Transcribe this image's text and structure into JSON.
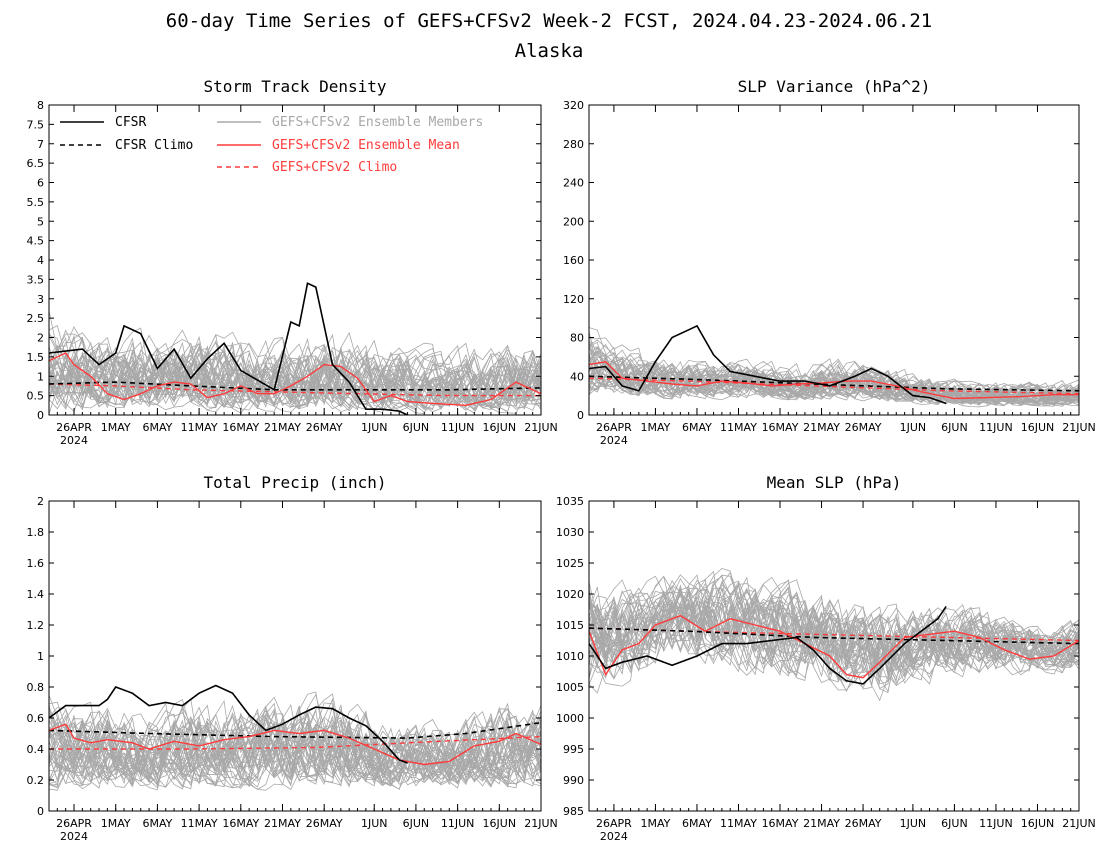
{
  "figure": {
    "title_line1": "60-day Time Series of GEFS+CFSv2 Week-2 FCST, 2024.04.23-2024.06.21",
    "title_line2": "Alaska"
  },
  "colors": {
    "cfsr": "#000000",
    "members": "#a8a8a8",
    "ensemble_mean": "#ff3b3b",
    "gefs_climo": "#ff3b3b"
  },
  "x_axis": {
    "start_date": "2024-04-23",
    "end_date": "2024-06-21",
    "tick_labels": [
      "26APR",
      "1MAY",
      "6MAY",
      "11MAY",
      "16MAY",
      "21MAY",
      "26MAY",
      "1JUN",
      "6JUN",
      "11JUN",
      "16JUN",
      "21JUN"
    ],
    "tick_dates": [
      "2024-04-26",
      "2024-05-01",
      "2024-05-06",
      "2024-05-11",
      "2024-05-16",
      "2024-05-21",
      "2024-05-26",
      "2024-06-01",
      "2024-06-06",
      "2024-06-11",
      "2024-06-16",
      "2024-06-21"
    ],
    "year_label": "2024"
  },
  "legend": {
    "cfsr": "CFSR",
    "cfsr_climo": "CFSR Climo",
    "members": "GEFS+CFSv2 Ensemble Members",
    "ensemble_mean": "GEFS+CFSv2 Ensemble Mean",
    "gefs_climo": "GEFS+CFSv2 Climo"
  },
  "chart_data": [
    {
      "type": "line",
      "title": "Storm Track Density",
      "ylim": [
        0,
        8
      ],
      "yticks": [
        "0",
        "0.5",
        "1",
        "1.5",
        "2",
        "2.5",
        "3",
        "3.5",
        "4",
        "4.5",
        "5",
        "5.5",
        "6",
        "6.5",
        "7",
        "7.5",
        "8"
      ],
      "legend": "top-left",
      "members_band": {
        "name": "GEFS+CFSv2 Ensemble Members",
        "dates": [
          "2024-04-23",
          "2024-04-28",
          "2024-05-03",
          "2024-05-08",
          "2024-05-13",
          "2024-05-18",
          "2024-05-23",
          "2024-05-28",
          "2024-06-02",
          "2024-06-07",
          "2024-06-12",
          "2024-06-17",
          "2024-06-21"
        ],
        "low": [
          0.0,
          0.0,
          0.0,
          0.0,
          0.0,
          0.0,
          0.0,
          0.0,
          0.0,
          0.0,
          0.0,
          0.0,
          0.0
        ],
        "high": [
          3.0,
          2.6,
          2.5,
          2.4,
          2.6,
          2.3,
          2.6,
          2.6,
          2.3,
          2.0,
          2.0,
          2.3,
          2.4
        ]
      },
      "series": [
        {
          "name": "CFSR",
          "dates": [
            "2024-04-23",
            "2024-04-25",
            "2024-04-27",
            "2024-04-29",
            "2024-05-01",
            "2024-05-02",
            "2024-05-04",
            "2024-05-06",
            "2024-05-08",
            "2024-05-10",
            "2024-05-12",
            "2024-05-14",
            "2024-05-16",
            "2024-05-18",
            "2024-05-20",
            "2024-05-22",
            "2024-05-23",
            "2024-05-24",
            "2024-05-25",
            "2024-05-27",
            "2024-05-29",
            "2024-05-31",
            "2024-06-02",
            "2024-06-04",
            "2024-06-05"
          ],
          "values": [
            1.6,
            1.65,
            1.7,
            1.3,
            1.6,
            2.3,
            2.1,
            1.2,
            1.7,
            0.95,
            1.45,
            1.85,
            1.15,
            0.9,
            0.65,
            2.4,
            2.3,
            3.4,
            3.3,
            1.3,
            0.85,
            0.15,
            0.15,
            0.1,
            0.0
          ]
        },
        {
          "name": "CFSR Climo",
          "dates": [
            "2024-04-23",
            "2024-05-01",
            "2024-05-10",
            "2024-05-20",
            "2024-05-30",
            "2024-06-10",
            "2024-06-21"
          ],
          "values": [
            0.8,
            0.85,
            0.75,
            0.65,
            0.65,
            0.65,
            0.7
          ]
        },
        {
          "name": "GEFS+CFSv2 Ensemble Mean",
          "dates": [
            "2024-04-23",
            "2024-04-25",
            "2024-04-26",
            "2024-04-28",
            "2024-04-30",
            "2024-05-02",
            "2024-05-04",
            "2024-05-06",
            "2024-05-08",
            "2024-05-10",
            "2024-05-12",
            "2024-05-14",
            "2024-05-16",
            "2024-05-18",
            "2024-05-20",
            "2024-05-22",
            "2024-05-24",
            "2024-05-26",
            "2024-05-28",
            "2024-05-30",
            "2024-06-01",
            "2024-06-03",
            "2024-06-05",
            "2024-06-08",
            "2024-06-12",
            "2024-06-15",
            "2024-06-18",
            "2024-06-21"
          ],
          "values": [
            1.4,
            1.6,
            1.3,
            1.0,
            0.55,
            0.4,
            0.55,
            0.75,
            0.85,
            0.8,
            0.45,
            0.55,
            0.75,
            0.55,
            0.55,
            0.75,
            1.0,
            1.3,
            1.25,
            0.95,
            0.35,
            0.5,
            0.35,
            0.3,
            0.25,
            0.4,
            0.85,
            0.55
          ]
        },
        {
          "name": "GEFS+CFSv2 Climo",
          "dates": [
            "2024-04-23",
            "2024-05-01",
            "2024-05-10",
            "2024-05-20",
            "2024-05-30",
            "2024-06-10",
            "2024-06-21"
          ],
          "values": [
            0.8,
            0.75,
            0.65,
            0.6,
            0.55,
            0.5,
            0.5
          ]
        }
      ]
    },
    {
      "type": "line",
      "title": "SLP Variance (hPa^2)",
      "ylim": [
        0,
        320
      ],
      "yticks": [
        "0",
        "40",
        "80",
        "120",
        "160",
        "200",
        "240",
        "280",
        "320"
      ],
      "members_band": {
        "name": "GEFS+CFSv2 Ensemble Members",
        "dates": [
          "2024-04-23",
          "2024-04-28",
          "2024-05-03",
          "2024-05-08",
          "2024-05-13",
          "2024-05-18",
          "2024-05-23",
          "2024-05-28",
          "2024-06-02",
          "2024-06-07",
          "2024-06-12",
          "2024-06-17",
          "2024-06-21"
        ],
        "low": [
          20,
          18,
          15,
          15,
          15,
          14,
          14,
          12,
          10,
          8,
          8,
          8,
          8
        ],
        "high": [
          95,
          75,
          70,
          65,
          62,
          60,
          68,
          60,
          48,
          40,
          40,
          40,
          40
        ]
      },
      "series": [
        {
          "name": "CFSR",
          "dates": [
            "2024-04-23",
            "2024-04-25",
            "2024-04-27",
            "2024-04-29",
            "2024-05-01",
            "2024-05-03",
            "2024-05-05",
            "2024-05-06",
            "2024-05-08",
            "2024-05-10",
            "2024-05-13",
            "2024-05-16",
            "2024-05-19",
            "2024-05-22",
            "2024-05-25",
            "2024-05-27",
            "2024-05-29",
            "2024-06-01",
            "2024-06-03",
            "2024-06-05"
          ],
          "values": [
            48,
            50,
            30,
            25,
            55,
            80,
            88,
            92,
            62,
            45,
            40,
            35,
            35,
            30,
            40,
            48,
            40,
            20,
            18,
            12
          ]
        },
        {
          "name": "CFSR Climo",
          "dates": [
            "2024-04-23",
            "2024-05-05",
            "2024-05-20",
            "2024-06-05",
            "2024-06-21"
          ],
          "values": [
            40,
            37,
            32,
            27,
            25
          ]
        },
        {
          "name": "GEFS+CFSv2 Ensemble Mean",
          "dates": [
            "2024-04-23",
            "2024-04-25",
            "2024-04-27",
            "2024-04-30",
            "2024-05-03",
            "2024-05-06",
            "2024-05-09",
            "2024-05-12",
            "2024-05-15",
            "2024-05-18",
            "2024-05-21",
            "2024-05-24",
            "2024-05-27",
            "2024-05-30",
            "2024-06-02",
            "2024-06-06",
            "2024-06-10",
            "2024-06-14",
            "2024-06-18",
            "2024-06-21"
          ],
          "values": [
            52,
            55,
            38,
            35,
            32,
            30,
            35,
            33,
            30,
            32,
            33,
            35,
            35,
            30,
            24,
            17,
            18,
            19,
            21,
            21
          ]
        },
        {
          "name": "GEFS+CFSv2 Climo",
          "dates": [
            "2024-04-23",
            "2024-05-05",
            "2024-05-20",
            "2024-06-05",
            "2024-06-21"
          ],
          "values": [
            38,
            35,
            30,
            25,
            22
          ]
        }
      ]
    },
    {
      "type": "line",
      "title": "Total Precip (inch)",
      "ylim": [
        0,
        2
      ],
      "yticks": [
        "0",
        "0.2",
        "0.4",
        "0.6",
        "0.8",
        "1",
        "1.2",
        "1.4",
        "1.6",
        "1.8",
        "2"
      ],
      "members_band": {
        "name": "GEFS+CFSv2 Ensemble Members",
        "dates": [
          "2024-04-23",
          "2024-04-28",
          "2024-05-03",
          "2024-05-08",
          "2024-05-13",
          "2024-05-18",
          "2024-05-23",
          "2024-05-28",
          "2024-06-02",
          "2024-06-07",
          "2024-06-12",
          "2024-06-17",
          "2024-06-21"
        ],
        "low": [
          0.12,
          0.12,
          0.12,
          0.12,
          0.12,
          0.12,
          0.12,
          0.12,
          0.12,
          0.12,
          0.12,
          0.12,
          0.12
        ],
        "high": [
          0.85,
          0.78,
          0.78,
          0.8,
          0.82,
          0.85,
          0.88,
          0.85,
          0.7,
          0.65,
          0.72,
          0.85,
          0.8
        ]
      },
      "series": [
        {
          "name": "CFSR",
          "dates": [
            "2024-04-23",
            "2024-04-25",
            "2024-04-27",
            "2024-04-29",
            "2024-04-30",
            "2024-05-01",
            "2024-05-03",
            "2024-05-05",
            "2024-05-07",
            "2024-05-09",
            "2024-05-11",
            "2024-05-13",
            "2024-05-15",
            "2024-05-17",
            "2024-05-19",
            "2024-05-21",
            "2024-05-23",
            "2024-05-25",
            "2024-05-27",
            "2024-05-29",
            "2024-05-31",
            "2024-06-02",
            "2024-06-04",
            "2024-06-05"
          ],
          "values": [
            0.6,
            0.68,
            0.68,
            0.68,
            0.72,
            0.8,
            0.76,
            0.68,
            0.7,
            0.68,
            0.76,
            0.81,
            0.76,
            0.62,
            0.52,
            0.56,
            0.62,
            0.67,
            0.66,
            0.6,
            0.55,
            0.45,
            0.33,
            0.31
          ]
        },
        {
          "name": "CFSR Climo",
          "dates": [
            "2024-04-23",
            "2024-05-05",
            "2024-05-20",
            "2024-06-05",
            "2024-06-12",
            "2024-06-21"
          ],
          "values": [
            0.52,
            0.5,
            0.48,
            0.47,
            0.5,
            0.57
          ]
        },
        {
          "name": "GEFS+CFSv2 Ensemble Mean",
          "dates": [
            "2024-04-23",
            "2024-04-25",
            "2024-04-26",
            "2024-04-28",
            "2024-04-30",
            "2024-05-03",
            "2024-05-05",
            "2024-05-08",
            "2024-05-11",
            "2024-05-14",
            "2024-05-17",
            "2024-05-20",
            "2024-05-23",
            "2024-05-26",
            "2024-05-29",
            "2024-06-01",
            "2024-06-04",
            "2024-06-07",
            "2024-06-10",
            "2024-06-13",
            "2024-06-16",
            "2024-06-18",
            "2024-06-21"
          ],
          "values": [
            0.52,
            0.56,
            0.47,
            0.44,
            0.46,
            0.44,
            0.4,
            0.45,
            0.42,
            0.46,
            0.48,
            0.52,
            0.5,
            0.52,
            0.47,
            0.4,
            0.33,
            0.3,
            0.32,
            0.42,
            0.45,
            0.5,
            0.43
          ]
        },
        {
          "name": "GEFS+CFSv2 Climo",
          "dates": [
            "2024-04-23",
            "2024-05-10",
            "2024-05-25",
            "2024-06-05",
            "2024-06-21"
          ],
          "values": [
            0.4,
            0.4,
            0.41,
            0.44,
            0.48
          ]
        }
      ]
    },
    {
      "type": "line",
      "title": "Mean SLP (hPa)",
      "ylim": [
        985,
        1035
      ],
      "yticks": [
        "985",
        "990",
        "995",
        "1000",
        "1005",
        "1010",
        "1015",
        "1020",
        "1025",
        "1030",
        "1035"
      ],
      "members_band": {
        "name": "GEFS+CFSv2 Ensemble Members",
        "dates": [
          "2024-04-23",
          "2024-04-28",
          "2024-05-03",
          "2024-05-08",
          "2024-05-13",
          "2024-05-18",
          "2024-05-23",
          "2024-05-28",
          "2024-06-02",
          "2024-06-07",
          "2024-06-12",
          "2024-06-17",
          "2024-06-21"
        ],
        "low": [
          1002,
          1004,
          1007,
          1006,
          1005,
          1004,
          1002,
          1000,
          1004,
          1005,
          1005,
          1006,
          1006
        ],
        "high": [
          1024,
          1024,
          1025,
          1026,
          1025,
          1024,
          1022,
          1020,
          1020,
          1020,
          1018,
          1016,
          1017
        ]
      },
      "series": [
        {
          "name": "CFSR",
          "dates": [
            "2024-04-23",
            "2024-04-25",
            "2024-04-27",
            "2024-04-30",
            "2024-05-03",
            "2024-05-06",
            "2024-05-09",
            "2024-05-12",
            "2024-05-15",
            "2024-05-18",
            "2024-05-20",
            "2024-05-22",
            "2024-05-24",
            "2024-05-26",
            "2024-05-28",
            "2024-05-31",
            "2024-06-02",
            "2024-06-04",
            "2024-06-05"
          ],
          "values": [
            1012,
            1008,
            1009,
            1010,
            1008.5,
            1010,
            1012,
            1012,
            1012.5,
            1013,
            1011,
            1008,
            1006,
            1005.5,
            1008,
            1012,
            1014,
            1016,
            1018
          ]
        },
        {
          "name": "CFSR Climo",
          "dates": [
            "2024-04-23",
            "2024-05-05",
            "2024-05-20",
            "2024-06-05",
            "2024-06-21"
          ],
          "values": [
            1014.5,
            1014,
            1013,
            1012.5,
            1012
          ]
        },
        {
          "name": "GEFS+CFSv2 Ensemble Mean",
          "dates": [
            "2024-04-23",
            "2024-04-25",
            "2024-04-27",
            "2024-04-29",
            "2024-05-01",
            "2024-05-04",
            "2024-05-07",
            "2024-05-10",
            "2024-05-13",
            "2024-05-16",
            "2024-05-19",
            "2024-05-22",
            "2024-05-24",
            "2024-05-26",
            "2024-05-28",
            "2024-05-31",
            "2024-06-03",
            "2024-06-06",
            "2024-06-09",
            "2024-06-12",
            "2024-06-15",
            "2024-06-18",
            "2024-06-21"
          ],
          "values": [
            1014,
            1007,
            1011,
            1012,
            1015,
            1016.5,
            1014,
            1016,
            1015,
            1014,
            1012,
            1010,
            1007,
            1006.5,
            1009,
            1013,
            1013.5,
            1014,
            1013,
            1011,
            1009.5,
            1010,
            1012.5
          ]
        },
        {
          "name": "GEFS+CFSv2 Climo",
          "dates": [
            "2024-04-23",
            "2024-05-05",
            "2024-05-20",
            "2024-06-05",
            "2024-06-21"
          ],
          "values": [
            1014.5,
            1014,
            1013.5,
            1013,
            1012.5
          ]
        }
      ]
    }
  ]
}
